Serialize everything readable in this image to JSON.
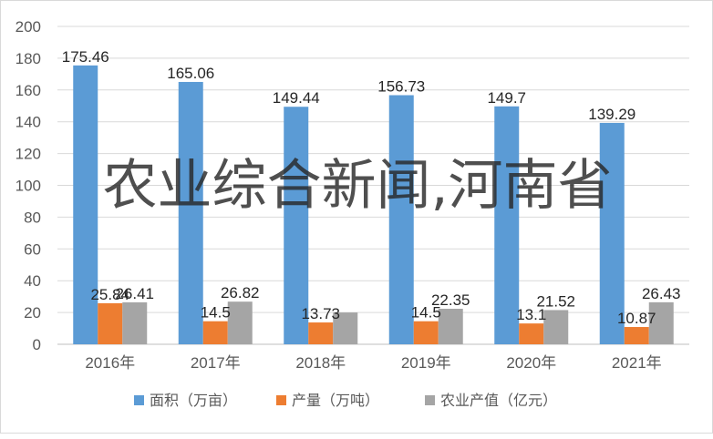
{
  "overlay_text": "农业综合新闻,河南省",
  "chart_data": {
    "type": "bar",
    "categories": [
      "2016年",
      "2017年",
      "2018年",
      "2019年",
      "2020年",
      "2021年"
    ],
    "series": [
      {
        "name": "面积（万亩）",
        "values": [
          175.46,
          165.06,
          149.44,
          156.73,
          149.7,
          139.29
        ],
        "labels": [
          "175.46",
          "165.06",
          "149.44",
          "156.73",
          "149.7",
          "139.29"
        ],
        "color": "#5b9bd5"
      },
      {
        "name": "产量（万吨）",
        "values": [
          25.84,
          14.5,
          13.73,
          14.5,
          13.1,
          10.87
        ],
        "labels": [
          "25.84",
          "14.5",
          "13.73",
          "14.5",
          "13.1",
          "10.87"
        ],
        "color": "#ed7d31"
      },
      {
        "name": "农业产值（亿元）",
        "values": [
          26.41,
          26.82,
          20,
          22.35,
          21.52,
          26.43
        ],
        "labels": [
          "26.41",
          "26.82",
          "",
          "22.35",
          "21.52",
          "26.43"
        ],
        "color": "#a5a5a5"
      }
    ],
    "y_ticks": [
      "0",
      "20",
      "40",
      "60",
      "80",
      "100",
      "120",
      "140",
      "160",
      "180",
      "200"
    ],
    "ylim": [
      0,
      200
    ],
    "grid": true,
    "legend_position": "bottom"
  }
}
